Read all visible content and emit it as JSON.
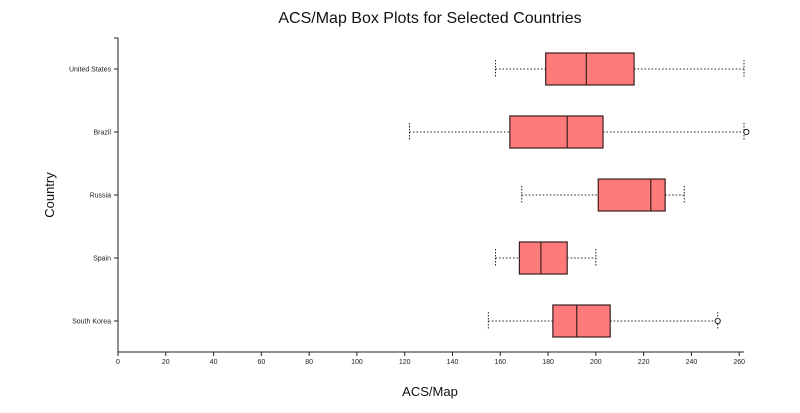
{
  "chart_data": {
    "type": "boxplot",
    "title": "ACS/Map Box Plots for Selected Countries",
    "xlabel": "ACS/Map",
    "ylabel": "Country",
    "xlim": [
      0,
      262
    ],
    "xticks": [
      0,
      20,
      40,
      60,
      80,
      100,
      120,
      140,
      160,
      180,
      200,
      220,
      240,
      260
    ],
    "grid": false,
    "box_color": "#ff7b7b",
    "edge_color": "#3a1f1f",
    "series": [
      {
        "category": "United States",
        "whisker_low": 158,
        "q1": 179,
        "median": 196,
        "q3": 216,
        "whisker_high": 262,
        "outliers": []
      },
      {
        "category": "Brazil",
        "whisker_low": 122,
        "q1": 164,
        "median": 188,
        "q3": 203,
        "whisker_high": 262,
        "outliers": [
          263
        ]
      },
      {
        "category": "Russia",
        "whisker_low": 169,
        "q1": 201,
        "median": 223,
        "q3": 229,
        "whisker_high": 237,
        "outliers": []
      },
      {
        "category": "Spain",
        "whisker_low": 158,
        "q1": 168,
        "median": 177,
        "q3": 188,
        "whisker_high": 200,
        "outliers": []
      },
      {
        "category": "South Korea",
        "whisker_low": 155,
        "q1": 182,
        "median": 192,
        "q3": 206,
        "whisker_high": 251,
        "outliers": [
          251
        ]
      }
    ]
  }
}
